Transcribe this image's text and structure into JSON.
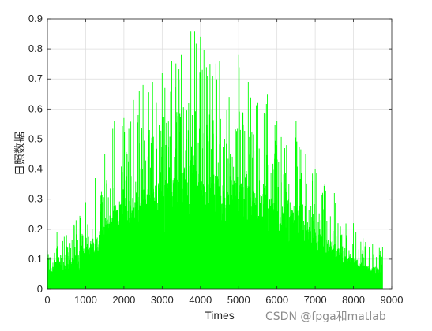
{
  "chart_data": {
    "type": "line",
    "title": "",
    "xlabel": "Times",
    "ylabel": "日照数据",
    "xlim": [
      0,
      9000
    ],
    "ylim": [
      0,
      0.9
    ],
    "xticks": [
      "0",
      "1000",
      "2000",
      "3000",
      "4000",
      "5000",
      "6000",
      "7000",
      "8000",
      "9000"
    ],
    "yticks": [
      "0",
      "0.1",
      "0.2",
      "0.3",
      "0.4",
      "0.5",
      "0.6",
      "0.7",
      "0.8",
      "0.9"
    ],
    "grid": true,
    "line_color": "#00ff00",
    "series": [
      {
        "name": "",
        "x": [
          0,
          250,
          500,
          750,
          1000,
          1250,
          1500,
          1750,
          2000,
          2250,
          2500,
          2750,
          3000,
          3250,
          3500,
          3750,
          3850,
          4000,
          4250,
          4500,
          4750,
          5000,
          5250,
          5500,
          5750,
          6000,
          6250,
          6500,
          6750,
          7000,
          7250,
          7500,
          7750,
          8000,
          8250,
          8500,
          8760
        ],
        "y": [
          0.13,
          0.19,
          0.18,
          0.23,
          0.29,
          0.37,
          0.45,
          0.56,
          0.57,
          0.63,
          0.68,
          0.69,
          0.72,
          0.76,
          0.78,
          0.86,
          0.86,
          0.84,
          0.75,
          0.76,
          0.64,
          0.78,
          0.69,
          0.62,
          0.65,
          0.56,
          0.48,
          0.56,
          0.45,
          0.4,
          0.35,
          0.32,
          0.23,
          0.22,
          0.17,
          0.15,
          0.14
        ]
      }
    ]
  },
  "watermark": "CSDN @fpga和matlab"
}
